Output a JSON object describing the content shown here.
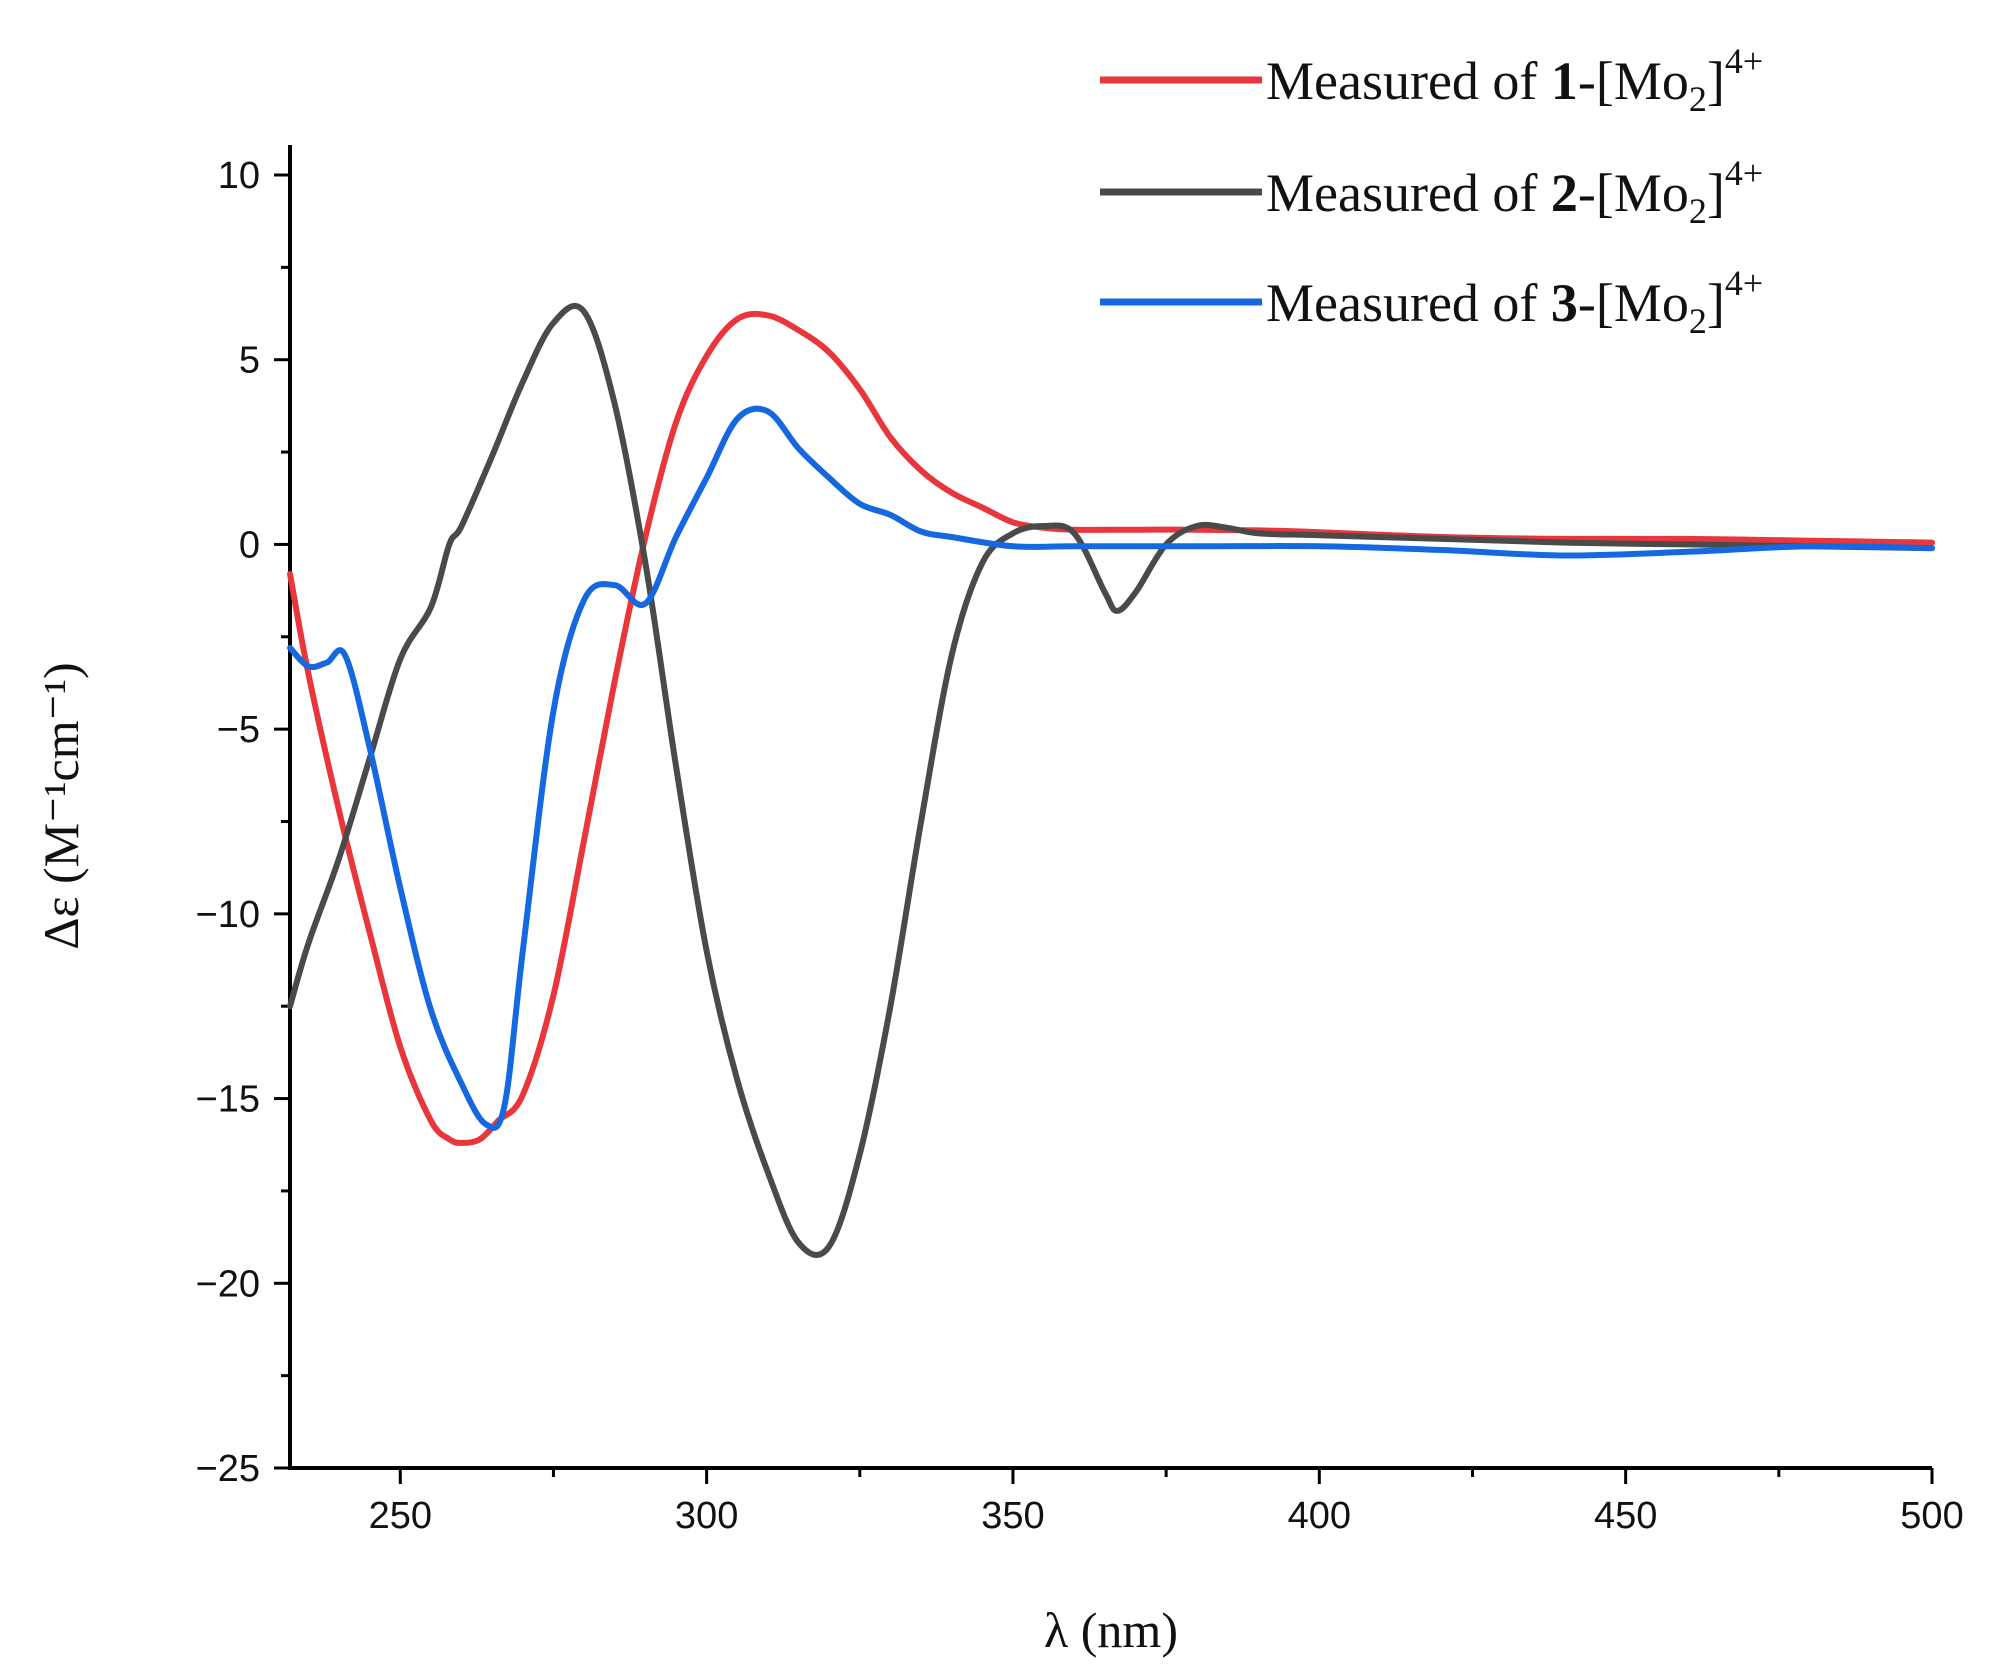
{
  "chart_data": {
    "type": "line",
    "xlabel": "λ (nm)",
    "ylabel": "Δε (M⁻¹cm⁻¹)",
    "xlim": [
      232,
      500
    ],
    "ylim": [
      -25,
      10
    ],
    "x_ticks": [
      250,
      300,
      350,
      400,
      450,
      500
    ],
    "x_tick_labels": [
      "250",
      "300",
      "350",
      "400",
      "450",
      "500"
    ],
    "y_ticks": [
      10,
      5,
      0,
      -5,
      -10,
      -15,
      -20,
      -25
    ],
    "y_tick_labels": [
      "10",
      "5",
      "0",
      "−5",
      "−10",
      "−15",
      "−20",
      "−25"
    ],
    "legend": {
      "position": "top-right",
      "entries": [
        {
          "prefix": "Measured of ",
          "bold": "1",
          "suffix": "-[Mo",
          "sub": "2",
          "close": "]",
          "sup": "4+"
        },
        {
          "prefix": "Measured of ",
          "bold": "2",
          "suffix": "-[Mo",
          "sub": "2",
          "close": "]",
          "sup": "4+"
        },
        {
          "prefix": "Measured of ",
          "bold": "3",
          "suffix": "-[Mo",
          "sub": "2",
          "close": "]",
          "sup": "4+"
        }
      ]
    },
    "series": [
      {
        "name": "Measured of 1-[Mo2]4+",
        "color": "#e8363c",
        "x": [
          232,
          235,
          240,
          245,
          250,
          255,
          258,
          260,
          263,
          266,
          270,
          275,
          280,
          285,
          290,
          295,
          300,
          305,
          310,
          315,
          320,
          325,
          330,
          335,
          340,
          345,
          350,
          355,
          360,
          370,
          380,
          390,
          400,
          420,
          440,
          460,
          480,
          500
        ],
        "y": [
          -0.8,
          -3.5,
          -7.2,
          -10.5,
          -13.6,
          -15.6,
          -16.1,
          -16.2,
          -16.1,
          -15.6,
          -14.9,
          -12.2,
          -8.0,
          -3.7,
          0.2,
          3.3,
          5.1,
          6.1,
          6.2,
          5.8,
          5.2,
          4.2,
          2.9,
          2.0,
          1.4,
          1.0,
          0.6,
          0.45,
          0.4,
          0.4,
          0.4,
          0.38,
          0.33,
          0.2,
          0.15,
          0.15,
          0.1,
          0.05
        ]
      },
      {
        "name": "Measured of 2-[Mo2]4+",
        "color": "#4a4a4a",
        "x": [
          232,
          235,
          240,
          245,
          250,
          255,
          258,
          260,
          265,
          270,
          275,
          280,
          285,
          290,
          295,
          300,
          305,
          310,
          315,
          320,
          325,
          330,
          335,
          340,
          345,
          350,
          355,
          360,
          365,
          367,
          370,
          375,
          380,
          385,
          390,
          400,
          420,
          440,
          460,
          480,
          500
        ],
        "y": [
          -12.5,
          -10.8,
          -8.5,
          -5.8,
          -3.1,
          -1.7,
          0.0,
          0.5,
          2.4,
          4.4,
          6.0,
          6.3,
          3.8,
          -0.5,
          -6.0,
          -11.0,
          -14.5,
          -17.0,
          -18.9,
          -19.0,
          -16.5,
          -12.5,
          -7.5,
          -3.0,
          -0.5,
          0.3,
          0.5,
          0.3,
          -1.3,
          -1.8,
          -1.3,
          0.0,
          0.5,
          0.45,
          0.3,
          0.25,
          0.15,
          0.05,
          0.0,
          -0.05,
          -0.1
        ]
      },
      {
        "name": "Measured of 3-[Mo2]4+",
        "color": "#1668e0",
        "x": [
          232,
          235,
          238,
          241,
          245,
          250,
          255,
          260,
          264,
          267,
          270,
          275,
          280,
          285,
          290,
          295,
          300,
          305,
          310,
          315,
          320,
          325,
          330,
          335,
          340,
          350,
          360,
          380,
          400,
          420,
          440,
          460,
          480,
          500
        ],
        "y": [
          -2.8,
          -3.3,
          -3.2,
          -3.0,
          -5.5,
          -9.3,
          -12.6,
          -14.6,
          -15.7,
          -15.2,
          -11.0,
          -4.5,
          -1.5,
          -1.1,
          -1.6,
          0.2,
          1.8,
          3.4,
          3.6,
          2.6,
          1.8,
          1.1,
          0.8,
          0.35,
          0.2,
          -0.05,
          -0.05,
          -0.05,
          -0.05,
          -0.15,
          -0.3,
          -0.2,
          -0.05,
          -0.1
        ]
      }
    ]
  }
}
